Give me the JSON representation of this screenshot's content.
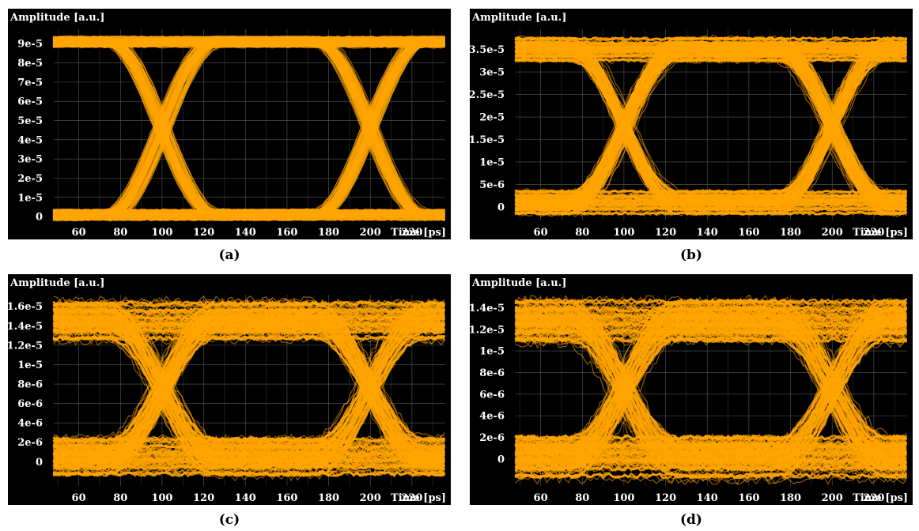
{
  "accent_color": "#ffa500",
  "background_color": "#000000",
  "chart_data": [
    {
      "type": "line",
      "caption": "(a)",
      "title": "",
      "xlabel": "Time [ps]",
      "ylabel": "Amplitude [a.u.]",
      "xlim": [
        48,
        236
      ],
      "ylim": [
        -2e-06,
        9.75e-05
      ],
      "x_ticks": [
        60,
        80,
        100,
        120,
        140,
        160,
        180,
        200,
        220
      ],
      "y_ticks": [
        0,
        1e-05,
        2e-05,
        3e-05,
        4e-05,
        5e-05,
        6e-05,
        7e-05,
        8e-05,
        9e-05
      ],
      "y_tick_labels": [
        "0",
        "1e-5",
        "2e-5",
        "3e-5",
        "4e-5",
        "5e-5",
        "6e-5",
        "7e-5",
        "8e-5",
        "9e-5"
      ],
      "eye": {
        "level_high": 9.1e-05,
        "level_low": 1e-06,
        "crossing": 4.5e-05,
        "crossing_times": [
          100,
          200
        ],
        "spread": 3e-06
      },
      "grid": true
    },
    {
      "type": "line",
      "caption": "(b)",
      "title": "",
      "xlabel": "Time [ps]",
      "ylabel": "Amplitude [a.u.]",
      "xlim": [
        48,
        236
      ],
      "ylim": [
        -3e-06,
        3.95e-05
      ],
      "x_ticks": [
        60,
        80,
        100,
        120,
        140,
        160,
        180,
        200,
        220
      ],
      "y_ticks": [
        0,
        5e-06,
        1e-05,
        1.5e-05,
        2e-05,
        2.5e-05,
        3e-05,
        3.5e-05
      ],
      "y_tick_labels": [
        "0",
        "5e-6",
        "1e-5",
        "1.5e-5",
        "2e-5",
        "2.5e-5",
        "3e-5",
        "3.5e-5"
      ],
      "eye": {
        "level_high": 3.5e-05,
        "level_low": 1e-06,
        "crossing": 1.8e-05,
        "crossing_times": [
          100,
          200
        ],
        "spread": 3e-06
      },
      "grid": true
    },
    {
      "type": "line",
      "caption": "(c)",
      "title": "",
      "xlabel": "Time [ps]",
      "ylabel": "Amplitude [a.u.]",
      "xlim": [
        48,
        236
      ],
      "ylim": [
        -2.5e-06,
        1.72e-05
      ],
      "x_ticks": [
        60,
        80,
        100,
        120,
        140,
        160,
        180,
        200,
        220
      ],
      "y_ticks": [
        0,
        2e-06,
        4e-06,
        6e-06,
        8e-06,
        1e-05,
        1.2e-05,
        1.4e-05,
        1.6e-05
      ],
      "y_tick_labels": [
        "0",
        "2e-6",
        "4e-6",
        "6e-6",
        "8e-6",
        "1e-5",
        "1.2e-5",
        "1.4e-5",
        "1.6e-5"
      ],
      "eye": {
        "level_high": 1.45e-05,
        "level_low": 5e-07,
        "crossing": 7.5e-06,
        "crossing_times": [
          100,
          200
        ],
        "spread": 2.2e-06
      },
      "grid": true
    },
    {
      "type": "line",
      "caption": "(d)",
      "title": "",
      "xlabel": "Time [ps]",
      "ylabel": "Amplitude [a.u.]",
      "xlim": [
        48,
        236
      ],
      "ylim": [
        -2.5e-06,
        1.52e-05
      ],
      "x_ticks": [
        60,
        80,
        100,
        120,
        140,
        160,
        180,
        200,
        220
      ],
      "y_ticks": [
        0,
        2e-06,
        4e-06,
        6e-06,
        8e-06,
        1e-05,
        1.2e-05,
        1.4e-05
      ],
      "y_tick_labels": [
        "0",
        "2e-6",
        "4e-6",
        "6e-6",
        "8e-6",
        "1e-5",
        "1.2e-5",
        "1.4e-5"
      ],
      "eye": {
        "level_high": 1.28e-05,
        "level_low": 2e-07,
        "crossing": 6.5e-06,
        "crossing_times": [
          100,
          200
        ],
        "spread": 2.2e-06
      },
      "grid": true
    }
  ]
}
